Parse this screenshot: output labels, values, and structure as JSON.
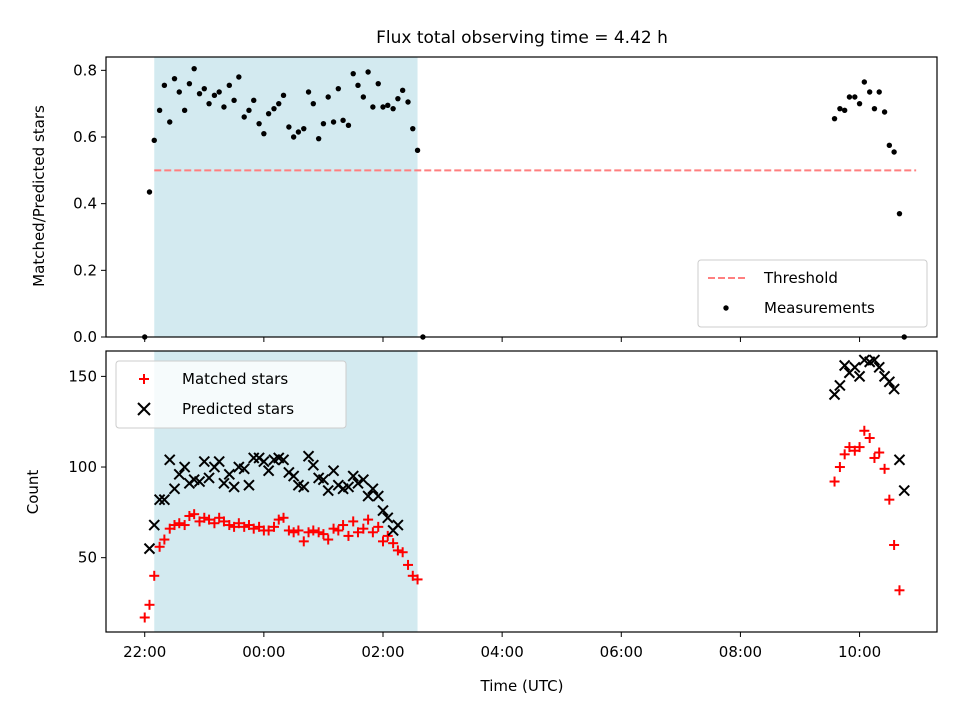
{
  "chart_data": [
    {
      "type": "scatter",
      "title": "Flux total observing time = 4.42 h",
      "xlabel": "",
      "ylabel": "Matched/Predicted stars",
      "ylim": [
        0,
        0.84
      ],
      "yticks": [
        0.0,
        0.2,
        0.4,
        0.6,
        0.8
      ],
      "ytick_labels": [
        "0.0",
        "0.2",
        "0.4",
        "0.6",
        "0.8"
      ],
      "xlim_hours": [
        -0.65,
        13.3
      ],
      "shaded_span_hours": [
        0.16,
        4.58
      ],
      "shaded_color": "#d3eaf0",
      "legend_position": "lower right",
      "threshold": {
        "name": "Threshold",
        "y": 0.5,
        "x_range_hours": [
          0.16,
          12.95
        ],
        "color": "#ff7f7f",
        "style": "dashed"
      },
      "series": [
        {
          "name": "Measurements",
          "color": "#000000",
          "marker": "dot",
          "x_hours": [
            0.0,
            0.08,
            0.16,
            0.25,
            0.33,
            0.42,
            0.5,
            0.58,
            0.67,
            0.75,
            0.83,
            0.92,
            1.0,
            1.08,
            1.17,
            1.25,
            1.33,
            1.42,
            1.5,
            1.58,
            1.67,
            1.75,
            1.83,
            1.92,
            2.0,
            2.08,
            2.17,
            2.25,
            2.33,
            2.42,
            2.5,
            2.58,
            2.67,
            2.75,
            2.83,
            2.92,
            3.0,
            3.08,
            3.17,
            3.25,
            3.33,
            3.42,
            3.5,
            3.58,
            3.67,
            3.75,
            3.83,
            3.92,
            4.0,
            4.08,
            4.17,
            4.25,
            4.33,
            4.42,
            4.5,
            4.58,
            4.67,
            11.58,
            11.67,
            11.75,
            11.83,
            11.92,
            12.0,
            12.08,
            12.17,
            12.25,
            12.33,
            12.42,
            12.5,
            12.58,
            12.67,
            12.75
          ],
          "y": [
            0.0,
            0.435,
            0.59,
            0.68,
            0.755,
            0.645,
            0.775,
            0.735,
            0.68,
            0.76,
            0.805,
            0.73,
            0.745,
            0.7,
            0.725,
            0.735,
            0.69,
            0.755,
            0.71,
            0.78,
            0.66,
            0.68,
            0.71,
            0.64,
            0.61,
            0.67,
            0.685,
            0.7,
            0.725,
            0.63,
            0.6,
            0.615,
            0.625,
            0.735,
            0.7,
            0.595,
            0.64,
            0.72,
            0.645,
            0.745,
            0.65,
            0.635,
            0.79,
            0.755,
            0.72,
            0.795,
            0.69,
            0.76,
            0.69,
            0.695,
            0.685,
            0.715,
            0.74,
            0.705,
            0.625,
            0.56,
            0.0,
            0.655,
            0.685,
            0.68,
            0.72,
            0.72,
            0.7,
            0.765,
            0.735,
            0.685,
            0.735,
            0.675,
            0.575,
            0.555,
            0.37,
            0.0
          ]
        }
      ]
    },
    {
      "type": "scatter",
      "title": "",
      "xlabel": "Time (UTC)",
      "ylabel": "Count",
      "ylim": [
        9,
        164
      ],
      "yticks": [
        50,
        100,
        150
      ],
      "ytick_labels": [
        "50",
        "100",
        "150"
      ],
      "xlim_hours": [
        -0.65,
        13.3
      ],
      "xticks_hours": [
        0,
        2,
        4,
        6,
        8,
        10,
        12
      ],
      "xtick_labels": [
        "22:00",
        "00:00",
        "02:00",
        "04:00",
        "06:00",
        "08:00",
        "10:00"
      ],
      "shaded_span_hours": [
        0.16,
        4.58
      ],
      "shaded_color": "#d3eaf0",
      "legend_position": "upper left",
      "series": [
        {
          "name": "Matched stars",
          "color": "#ff0000",
          "marker": "plus",
          "x_hours": [
            0.0,
            0.08,
            0.16,
            0.25,
            0.33,
            0.42,
            0.5,
            0.58,
            0.67,
            0.75,
            0.83,
            0.92,
            1.0,
            1.08,
            1.17,
            1.25,
            1.33,
            1.42,
            1.5,
            1.58,
            1.67,
            1.75,
            1.83,
            1.92,
            2.0,
            2.08,
            2.17,
            2.25,
            2.33,
            2.42,
            2.5,
            2.58,
            2.67,
            2.75,
            2.83,
            2.92,
            3.0,
            3.08,
            3.17,
            3.25,
            3.33,
            3.42,
            3.5,
            3.58,
            3.67,
            3.75,
            3.83,
            3.92,
            4.0,
            4.08,
            4.17,
            4.25,
            4.33,
            4.42,
            4.5,
            4.58,
            4.67,
            11.58,
            11.67,
            11.75,
            11.83,
            11.92,
            12.0,
            12.08,
            12.17,
            12.25,
            12.33,
            12.42,
            12.5,
            12.58,
            12.67,
            12.75
          ],
          "y": [
            17,
            24,
            40,
            56,
            60,
            66,
            68,
            69,
            68,
            73,
            74,
            70,
            72,
            71,
            69,
            72,
            70,
            68,
            67,
            69,
            67,
            68,
            66,
            67,
            65,
            65,
            67,
            71,
            72,
            65,
            64,
            65,
            59,
            64,
            65,
            64,
            63,
            60,
            66,
            65,
            68,
            62,
            70,
            64,
            66,
            71,
            64,
            67,
            59,
            62,
            58,
            54,
            53,
            46,
            40,
            38,
            0,
            92,
            100,
            107,
            111,
            109,
            111,
            120,
            116,
            105,
            108,
            99,
            82,
            57,
            32,
            0
          ]
        },
        {
          "name": "Predicted stars",
          "color": "#000000",
          "marker": "x",
          "x_hours": [
            0.0,
            0.08,
            0.16,
            0.25,
            0.33,
            0.42,
            0.5,
            0.58,
            0.67,
            0.75,
            0.83,
            0.92,
            1.0,
            1.08,
            1.17,
            1.25,
            1.33,
            1.42,
            1.5,
            1.58,
            1.67,
            1.75,
            1.83,
            1.92,
            2.0,
            2.08,
            2.17,
            2.25,
            2.33,
            2.42,
            2.5,
            2.58,
            2.67,
            2.75,
            2.83,
            2.92,
            3.0,
            3.08,
            3.17,
            3.25,
            3.33,
            3.42,
            3.5,
            3.58,
            3.67,
            3.75,
            3.83,
            3.92,
            4.0,
            4.08,
            4.17,
            4.25,
            4.33,
            4.42,
            4.5,
            4.58,
            4.67,
            11.58,
            11.67,
            11.75,
            11.83,
            11.92,
            12.0,
            12.08,
            12.17,
            12.25,
            12.33,
            12.42,
            12.5,
            12.58,
            12.67,
            12.75
          ],
          "y": [
            0,
            55,
            68,
            82,
            82,
            104,
            88,
            96,
            100,
            91,
            93,
            92,
            103,
            94,
            100,
            103,
            91,
            96,
            89,
            100,
            99,
            90,
            105,
            105,
            103,
            98,
            104,
            105,
            104,
            97,
            95,
            90,
            89,
            106,
            101,
            94,
            93,
            87,
            98,
            90,
            88,
            89,
            95,
            91,
            93,
            84,
            88,
            84,
            76,
            72,
            65,
            68,
            0,
            0,
            0,
            0,
            0,
            140,
            145,
            156,
            152,
            155,
            150,
            159,
            158,
            159,
            155,
            150,
            147,
            143,
            104,
            87
          ],
          "note_zero_means_absent": true
        }
      ]
    }
  ]
}
